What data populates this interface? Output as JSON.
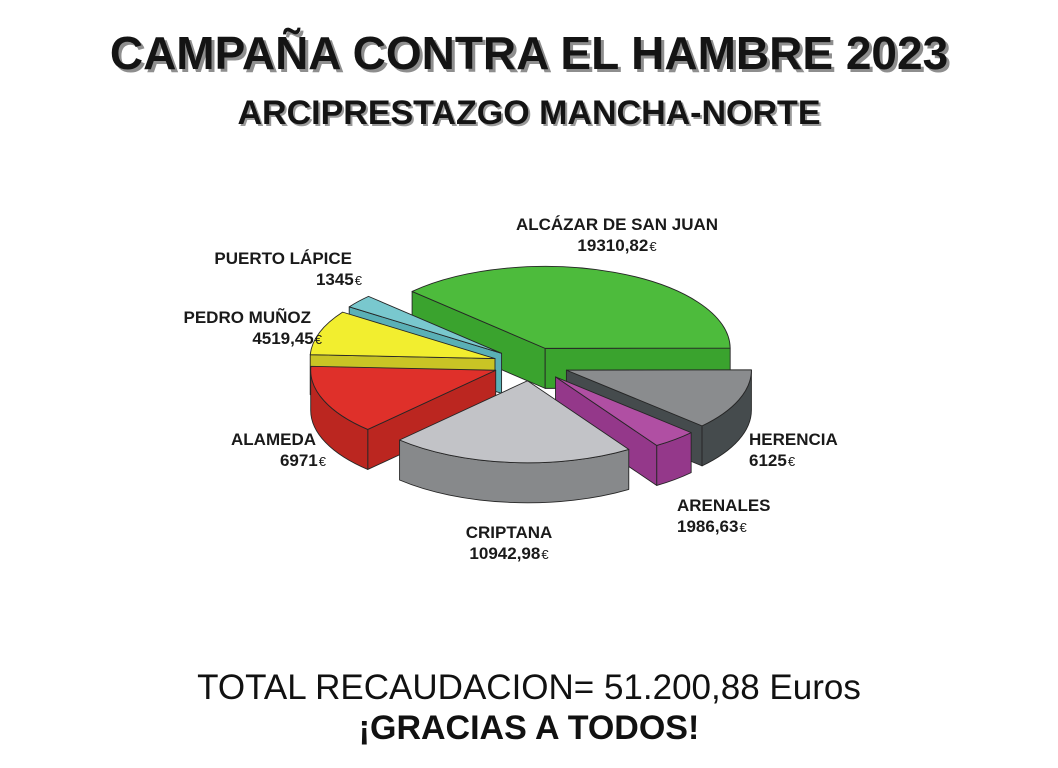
{
  "chart_data": {
    "type": "pie",
    "title": "CAMPAÑA CONTRA EL HAMBRE 2023",
    "subtitle": "ARCIPRESTAZGO MANCHA-NORTE",
    "categories": [
      "ALCÁZAR DE SAN JUAN",
      "HERENCIA",
      "ARENALES",
      "CRIPTANA",
      "ALAMEDA",
      "PEDRO MUÑOZ",
      "PUERTO LÁPICE"
    ],
    "values": [
      19310.82,
      6125,
      1986.63,
      10942.98,
      6971,
      4519.45,
      1345
    ],
    "value_labels": [
      "19310,82",
      "6125",
      "1986,63",
      "10942,98",
      "6971",
      "4519,45",
      "1345"
    ],
    "unit": "€",
    "colors": [
      "#4dbb3c",
      "#8a8c8e",
      "#b04fa3",
      "#c2c3c7",
      "#df302a",
      "#f2ee2f",
      "#79c8ce"
    ],
    "side_colors": [
      "#3aa32e",
      "#454b4d",
      "#94388a",
      "#87898b",
      "#bb2620",
      "#c9c425",
      "#5ab0b6"
    ]
  },
  "footer": {
    "total": "TOTAL RECAUDACION= 51.200,88 Euros",
    "thanks": "¡GRACIAS A TODOS!"
  }
}
